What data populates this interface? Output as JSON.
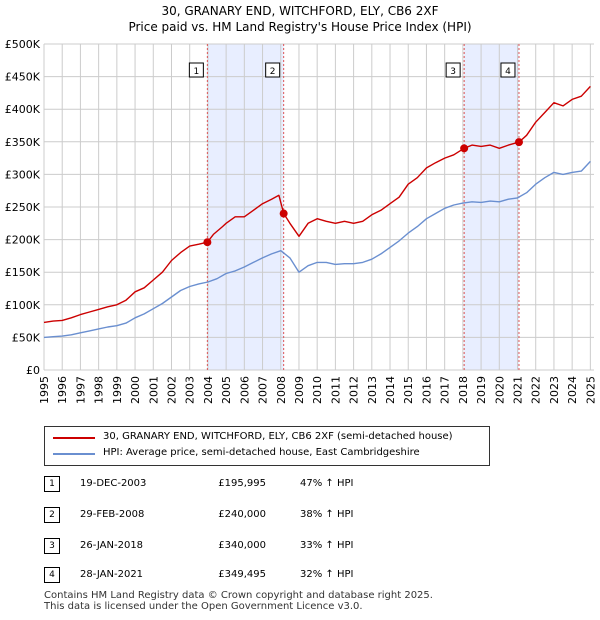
{
  "header": {
    "title_line1": "30, GRANARY END, WITCHFORD, ELY, CB6 2XF",
    "title_line2": "Price paid vs. HM Land Registry's House Price Index (HPI)"
  },
  "colors": {
    "property": "#cc0000",
    "hpi": "#6a8fd0",
    "shade": "#e8eeff",
    "grid": "#cccccc",
    "vline": "#dd5555"
  },
  "legend": {
    "property_label": "30, GRANARY END, WITCHFORD, ELY, CB6 2XF (semi-detached house)",
    "hpi_label": "HPI: Average price, semi-detached house, East Cambridgeshire"
  },
  "transactions": [
    {
      "num": "1",
      "date": "19-DEC-2003",
      "price": "£195,995",
      "hpi_change": "47% ↑ HPI"
    },
    {
      "num": "2",
      "date": "29-FEB-2008",
      "price": "£240,000",
      "hpi_change": "38% ↑ HPI"
    },
    {
      "num": "3",
      "date": "26-JAN-2018",
      "price": "£340,000",
      "hpi_change": "33% ↑ HPI"
    },
    {
      "num": "4",
      "date": "28-JAN-2021",
      "price": "£349,495",
      "hpi_change": "32% ↑ HPI"
    }
  ],
  "footer": {
    "line1": "Contains HM Land Registry data © Crown copyright and database right 2025.",
    "line2": "This data is licensed under the Open Government Licence v3.0."
  },
  "chart_data": {
    "type": "line",
    "title": "Price paid vs. HM Land Registry's House Price Index (HPI)",
    "xlim": [
      1995,
      2025.2
    ],
    "ylim": [
      0,
      500000
    ],
    "x_ticks": [
      1995,
      1996,
      1997,
      1998,
      1999,
      2000,
      2001,
      2002,
      2003,
      2004,
      2005,
      2006,
      2007,
      2008,
      2009,
      2010,
      2011,
      2012,
      2013,
      2014,
      2015,
      2016,
      2017,
      2018,
      2019,
      2020,
      2021,
      2022,
      2023,
      2024,
      2025
    ],
    "y_ticks": [
      {
        "value": 0,
        "label": "£0"
      },
      {
        "value": 50000,
        "label": "£50K"
      },
      {
        "value": 100000,
        "label": "£100K"
      },
      {
        "value": 150000,
        "label": "£150K"
      },
      {
        "value": 200000,
        "label": "£200K"
      },
      {
        "value": 250000,
        "label": "£250K"
      },
      {
        "value": 300000,
        "label": "£300K"
      },
      {
        "value": 350000,
        "label": "£350K"
      },
      {
        "value": 400000,
        "label": "£400K"
      },
      {
        "value": 450000,
        "label": "£450K"
      },
      {
        "value": 500000,
        "label": "£500K"
      }
    ],
    "shaded_periods": [
      [
        2003.97,
        2008.16
      ],
      [
        2018.07,
        2021.08
      ]
    ],
    "sales": [
      {
        "label": "1",
        "x": 2003.97,
        "y": 195995
      },
      {
        "label": "2",
        "x": 2008.16,
        "y": 240000
      },
      {
        "label": "3",
        "x": 2018.07,
        "y": 340000
      },
      {
        "label": "4",
        "x": 2021.08,
        "y": 349495
      }
    ],
    "series": [
      {
        "name": "30, GRANARY END, WITCHFORD, ELY, CB6 2XF (semi-detached house)",
        "x": [
          1995.0,
          1995.5,
          1996.0,
          1996.5,
          1997.0,
          1997.5,
          1998.0,
          1998.5,
          1999.0,
          1999.5,
          2000.0,
          2000.5,
          2001.0,
          2001.5,
          2002.0,
          2002.5,
          2003.0,
          2003.5,
          2003.97,
          2004.3,
          2004.8,
          2005.0,
          2005.5,
          2006.0,
          2006.5,
          2007.0,
          2007.5,
          2007.9,
          2008.16,
          2008.5,
          2009.0,
          2009.5,
          2010.0,
          2010.5,
          2011.0,
          2011.5,
          2012.0,
          2012.5,
          2013.0,
          2013.5,
          2014.0,
          2014.5,
          2015.0,
          2015.5,
          2016.0,
          2016.5,
          2017.0,
          2017.5,
          2018.07,
          2018.5,
          2019.0,
          2019.5,
          2020.0,
          2020.5,
          2021.08,
          2021.5,
          2022.0,
          2022.5,
          2023.0,
          2023.5,
          2024.0,
          2024.5,
          2025.0
        ],
        "values": [
          73000,
          75000,
          76000,
          80000,
          85000,
          89000,
          93000,
          97000,
          100000,
          107000,
          120000,
          126000,
          138000,
          150000,
          168000,
          180000,
          190000,
          193000,
          195995,
          208000,
          220000,
          225000,
          235000,
          235000,
          245000,
          255000,
          262000,
          268000,
          240000,
          225000,
          205000,
          225000,
          232000,
          228000,
          225000,
          228000,
          225000,
          228000,
          238000,
          245000,
          255000,
          265000,
          285000,
          295000,
          310000,
          318000,
          325000,
          330000,
          340000,
          345000,
          343000,
          345000,
          340000,
          345000,
          349495,
          360000,
          380000,
          395000,
          410000,
          405000,
          415000,
          420000,
          435000
        ]
      },
      {
        "name": "HPI: Average price, semi-detached house, East Cambridgeshire",
        "x": [
          1995.0,
          1995.5,
          1996.0,
          1996.5,
          1997.0,
          1997.5,
          1998.0,
          1998.5,
          1999.0,
          1999.5,
          2000.0,
          2000.5,
          2001.0,
          2001.5,
          2002.0,
          2002.5,
          2003.0,
          2003.5,
          2004.0,
          2004.5,
          2005.0,
          2005.5,
          2006.0,
          2006.5,
          2007.0,
          2007.5,
          2008.0,
          2008.5,
          2009.0,
          2009.5,
          2010.0,
          2010.5,
          2011.0,
          2011.5,
          2012.0,
          2012.5,
          2013.0,
          2013.5,
          2014.0,
          2014.5,
          2015.0,
          2015.5,
          2016.0,
          2016.5,
          2017.0,
          2017.5,
          2018.0,
          2018.5,
          2019.0,
          2019.5,
          2020.0,
          2020.5,
          2021.0,
          2021.5,
          2022.0,
          2022.5,
          2023.0,
          2023.5,
          2024.0,
          2024.5,
          2025.0
        ],
        "values": [
          50000,
          51000,
          52000,
          54000,
          57000,
          60000,
          63000,
          66000,
          68000,
          72000,
          80000,
          86000,
          94000,
          102000,
          112000,
          122000,
          128000,
          132000,
          135000,
          140000,
          148000,
          152000,
          158000,
          165000,
          172000,
          178000,
          183000,
          172000,
          150000,
          160000,
          165000,
          165000,
          162000,
          163000,
          163000,
          165000,
          170000,
          178000,
          188000,
          198000,
          210000,
          220000,
          232000,
          240000,
          248000,
          253000,
          256000,
          258000,
          257000,
          259000,
          258000,
          262000,
          264000,
          272000,
          285000,
          295000,
          303000,
          300000,
          303000,
          305000,
          320000
        ]
      }
    ]
  }
}
